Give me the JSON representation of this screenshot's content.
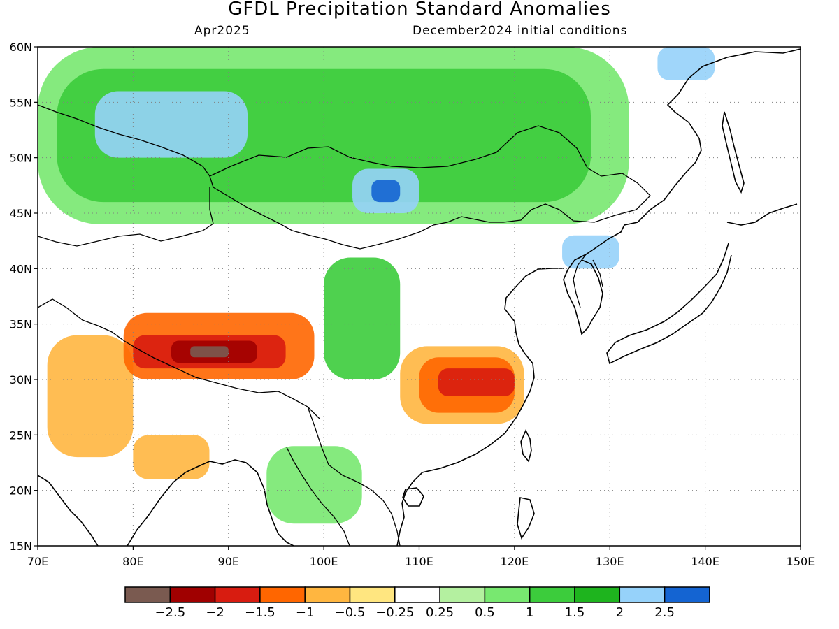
{
  "title": "GFDL Precipitation Standard Anomalies",
  "subtitle_left": "Apr2025",
  "subtitle_right": "December2024 initial conditions",
  "map": {
    "lon_range": [
      70,
      150
    ],
    "lat_range": [
      15,
      60
    ],
    "lat_ticks": [
      {
        "value": 15,
        "label": "15N"
      },
      {
        "value": 20,
        "label": "20N"
      },
      {
        "value": 25,
        "label": "25N"
      },
      {
        "value": 30,
        "label": "30N"
      },
      {
        "value": 35,
        "label": "35N"
      },
      {
        "value": 40,
        "label": "40N"
      },
      {
        "value": 45,
        "label": "45N"
      },
      {
        "value": 50,
        "label": "50N"
      },
      {
        "value": 55,
        "label": "55N"
      },
      {
        "value": 60,
        "label": "60N"
      }
    ],
    "lon_ticks": [
      {
        "value": 70,
        "label": "70E"
      },
      {
        "value": 80,
        "label": "80E"
      },
      {
        "value": 90,
        "label": "90E"
      },
      {
        "value": 100,
        "label": "100E"
      },
      {
        "value": 110,
        "label": "110E"
      },
      {
        "value": 120,
        "label": "120E"
      },
      {
        "value": 130,
        "label": "130E"
      },
      {
        "value": 140,
        "label": "140E"
      },
      {
        "value": 150,
        "label": "150E"
      }
    ],
    "gridlines": "dotted"
  },
  "colorbar": {
    "colors": [
      "#7a5a50",
      "#a00000",
      "#d81c10",
      "#ff6600",
      "#ffb640",
      "#ffe680",
      "#ffffff",
      "#b4f0a0",
      "#78e870",
      "#3ccc3c",
      "#1eb41e",
      "#96d2fa",
      "#1464d2"
    ],
    "labels": [
      "−2.5",
      "−2",
      "−1.5",
      "−1",
      "−0.5",
      "−0.25",
      "0.25",
      "0.5",
      "1",
      "1.5",
      "2",
      "2.5"
    ]
  },
  "anomaly_regions": [
    {
      "category": 8,
      "lon": [
        70,
        132
      ],
      "lat": [
        44,
        60
      ]
    },
    {
      "category": 9,
      "lon": [
        72,
        128
      ],
      "lat": [
        46,
        58
      ]
    },
    {
      "category": 11,
      "lon": [
        76,
        92
      ],
      "lat": [
        50,
        56
      ]
    },
    {
      "category": 11,
      "lon": [
        103,
        110
      ],
      "lat": [
        45,
        49
      ]
    },
    {
      "category": 12,
      "lon": [
        105,
        108
      ],
      "lat": [
        46,
        48
      ]
    },
    {
      "category": 11,
      "lon": [
        135,
        141
      ],
      "lat": [
        57,
        60
      ]
    },
    {
      "category": 11,
      "lon": [
        125,
        131
      ],
      "lat": [
        40,
        43
      ]
    },
    {
      "category": 9,
      "lon": [
        100,
        108
      ],
      "lat": [
        30,
        41
      ]
    },
    {
      "category": 8,
      "lon": [
        94,
        104
      ],
      "lat": [
        17,
        24
      ]
    },
    {
      "category": 4,
      "lon": [
        71,
        80
      ],
      "lat": [
        23,
        34
      ]
    },
    {
      "category": 4,
      "lon": [
        80,
        88
      ],
      "lat": [
        21,
        25
      ]
    },
    {
      "category": 3,
      "lon": [
        79,
        99
      ],
      "lat": [
        30,
        36
      ]
    },
    {
      "category": 2,
      "lon": [
        80,
        96
      ],
      "lat": [
        31,
        34
      ]
    },
    {
      "category": 1,
      "lon": [
        84,
        93
      ],
      "lat": [
        31.5,
        33.5
      ]
    },
    {
      "category": 0,
      "lon": [
        86,
        90
      ],
      "lat": [
        32,
        33
      ]
    },
    {
      "category": 4,
      "lon": [
        108,
        121
      ],
      "lat": [
        26,
        33
      ]
    },
    {
      "category": 3,
      "lon": [
        110,
        120
      ],
      "lat": [
        27,
        32
      ]
    },
    {
      "category": 2,
      "lon": [
        112,
        120
      ],
      "lat": [
        28.5,
        31
      ]
    }
  ]
}
